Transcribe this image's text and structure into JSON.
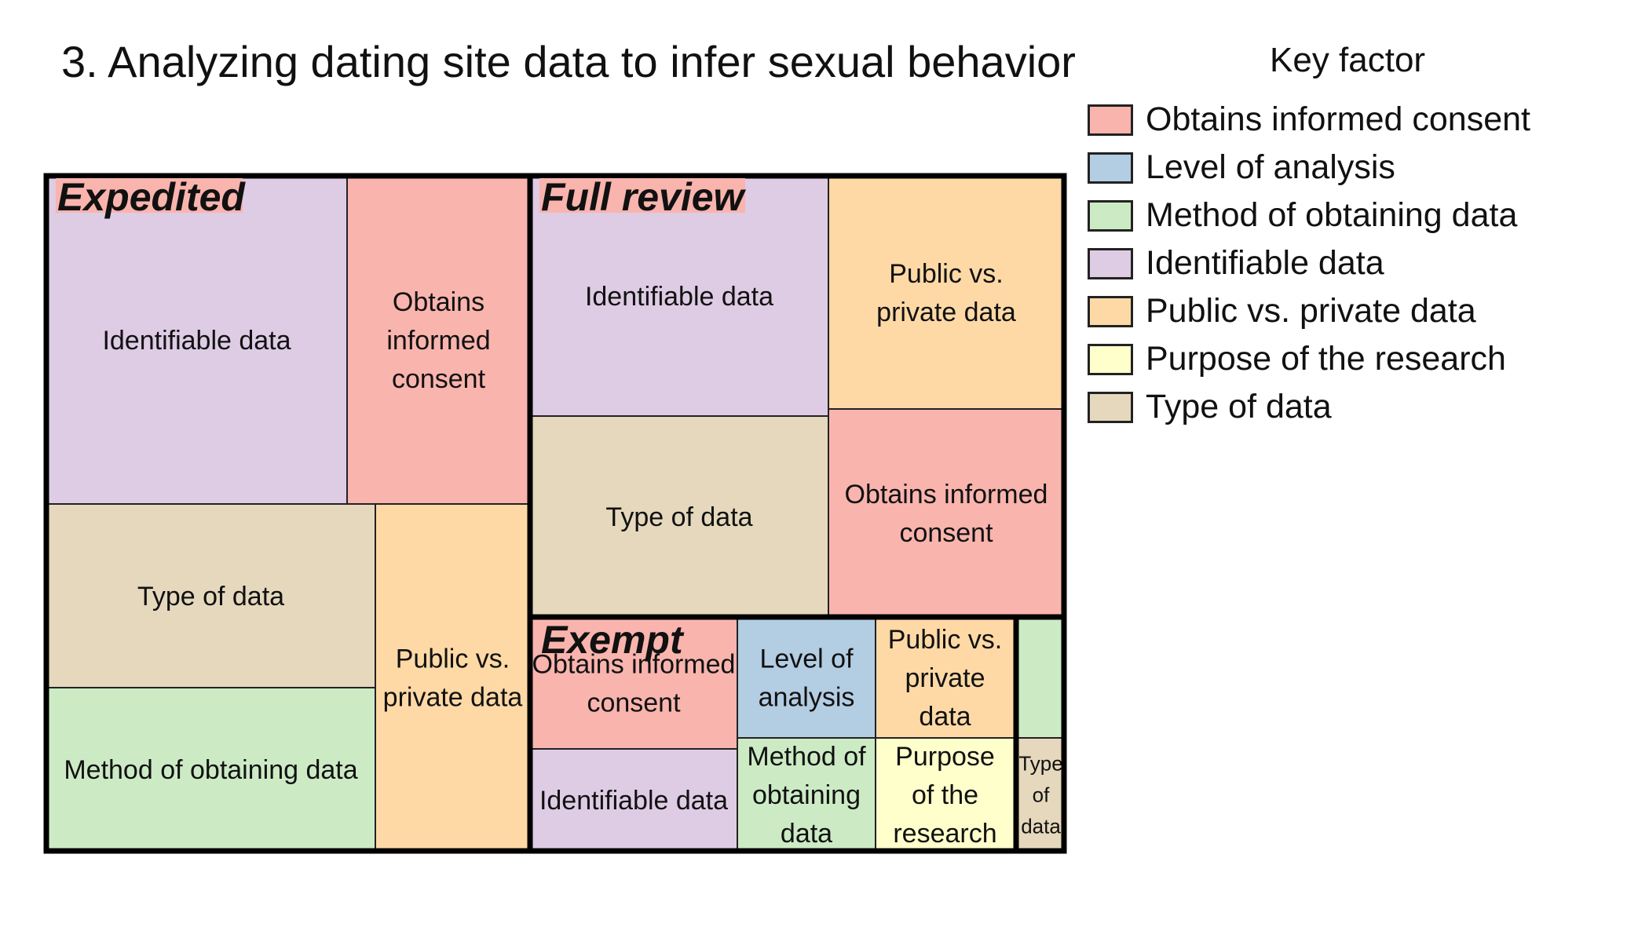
{
  "title": "3. Analyzing dating site data to infer sexual behavior",
  "legend": {
    "title": "Key factor",
    "items": [
      {
        "label": "Obtains informed consent",
        "color": "#f9b4ae"
      },
      {
        "label": "Level of analysis",
        "color": "#b3cde3"
      },
      {
        "label": "Method of obtaining data",
        "color": "#ccebc5"
      },
      {
        "label": "Identifiable data",
        "color": "#decbe4"
      },
      {
        "label": "Public vs. private data",
        "color": "#fed9a6"
      },
      {
        "label": "Purpose of the research",
        "color": "#ffffcc"
      },
      {
        "label": "Type of data",
        "color": "#e5d8bd"
      }
    ]
  },
  "chart_data": {
    "type": "treemap",
    "title": "3. Analyzing dating site data to infer sexual behavior",
    "legend_title": "Key factor",
    "legend_position": "right",
    "groups": [
      {
        "name": "Expedited",
        "cells": [
          {
            "factor": "Identifiable data",
            "label": "Identifiable data",
            "value": 8.6,
            "color": "#decbe4"
          },
          {
            "factor": "Obtains informed consent",
            "label": "Obtains informed consent",
            "value": 5.3,
            "color": "#f9b4ae"
          },
          {
            "factor": "Type of data",
            "label": "Type of data",
            "value": 6.1,
            "color": "#e5d8bd"
          },
          {
            "factor": "Method of obtaining data",
            "label": "Method of obtaining data",
            "value": 5.5,
            "color": "#ccebc5"
          },
          {
            "factor": "Public vs. private data",
            "label": "Public vs. private data",
            "value": 4.8,
            "color": "#fed9a6"
          }
        ]
      },
      {
        "name": "Full review",
        "cells": [
          {
            "factor": "Identifiable data",
            "label": "Identifiable data",
            "value": 6.1,
            "color": "#decbe4"
          },
          {
            "factor": "Type of data",
            "label": "Type of data",
            "value": 5.2,
            "color": "#e5d8bd"
          },
          {
            "factor": "Public vs. private data",
            "label": "Public vs. private data",
            "value": 4.7,
            "color": "#fed9a6"
          },
          {
            "factor": "Obtains informed consent",
            "label": "Obtains informed consent",
            "value": 4.3,
            "color": "#f9b4ae"
          }
        ]
      },
      {
        "name": "Exempt",
        "cells": [
          {
            "factor": "Obtains informed consent",
            "label": "Obtains informed consent",
            "value": 2.4,
            "color": "#f9b4ae"
          },
          {
            "factor": "Identifiable data",
            "label": "Identifiable data",
            "value": 1.9,
            "color": "#decbe4"
          },
          {
            "factor": "Level of analysis",
            "label": "Level of analysis",
            "value": 1.4,
            "color": "#b3cde3"
          },
          {
            "factor": "Method of obtaining data",
            "label": "Method of obtaining data",
            "value": 1.4,
            "color": "#ccebc5"
          },
          {
            "factor": "Public vs. private data",
            "label": "Public vs. private data",
            "value": 1.4,
            "color": "#fed9a6"
          },
          {
            "factor": "Purpose of the research",
            "label": "Purpose of the research",
            "value": 1.4,
            "color": "#ffffcc"
          },
          {
            "factor": "Method of obtaining data",
            "label": "",
            "value": 0.5,
            "color": "#ccebc5"
          },
          {
            "factor": "Type of data",
            "label": "Type of data",
            "value": 0.4,
            "color": "#e5d8bd"
          }
        ]
      }
    ]
  }
}
